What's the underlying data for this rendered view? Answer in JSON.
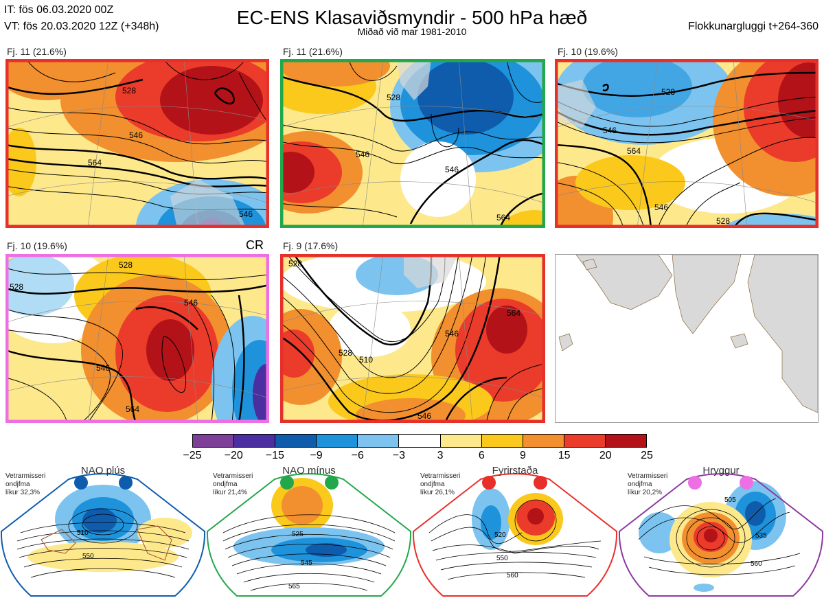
{
  "header": {
    "initial_time": "IT: fös 06.03.2020 00Z",
    "valid_time": "VT: fös 20.03.2020 12Z  (+348h)",
    "title": "EC-ENS Klasaviðsmyndir - 500 hPa hæð",
    "subtitle": "Miðað við mar 1981-2010",
    "window": "Flokkunargluggi t+264-360"
  },
  "clusters": [
    {
      "label": "Fj. 11 (21.6%)",
      "frame_color": "#e8302a"
    },
    {
      "label": "Fj. 11 (21.6%)",
      "frame_color": "#22a84a"
    },
    {
      "label": "Fj. 10 (19.6%)",
      "frame_color": "#e8302a"
    },
    {
      "label": "Fj. 10 (19.6%)",
      "frame_color": "#ee6fe4",
      "badge": "CR"
    },
    {
      "label": "Fj. 9 (17.6%)",
      "frame_color": "#e8302a"
    }
  ],
  "colorbar": {
    "ticks": [
      "−25",
      "−20",
      "−15",
      "−9",
      "−6",
      "−3",
      "3",
      "6",
      "9",
      "15",
      "20",
      "25"
    ],
    "colors": [
      "#7d3f98",
      "#4b2ea0",
      "#0f5cad",
      "#1e93dc",
      "#7cc4ef",
      "#ffffff",
      "#fde98c",
      "#fac91c",
      "#f28f2e",
      "#ea3b2b",
      "#b31218"
    ]
  },
  "regimes": [
    {
      "name": "NAO plús",
      "text": [
        "Vetrarmisseri",
        "ondjfma",
        "líkur 32,3%"
      ],
      "dot_color": "#0f5cad",
      "frame_color": "#0f5cad",
      "contours": [
        "510",
        "550"
      ]
    },
    {
      "name": "NAO mínus",
      "text": [
        "Vetrarmisseri",
        "ondjfma",
        "líkur 21,4%"
      ],
      "dot_color": "#22a84a",
      "frame_color": "#22a84a",
      "contours": [
        "525",
        "545",
        "565"
      ]
    },
    {
      "name": "Fyrirstaða",
      "text": [
        "Vetrarmisseri",
        "ondjfma",
        "líkur 26,1%"
      ],
      "dot_color": "#e8302a",
      "frame_color": "#e8302a",
      "contours": [
        "520",
        "550",
        "560"
      ]
    },
    {
      "name": "Hryggur",
      "text": [
        "Vetrarmisseri",
        "ondjfma",
        "líkur 20,2%"
      ],
      "dot_color": "#ee6fe4",
      "frame_color": "#8b3aa0",
      "contours": [
        "505",
        "535",
        "560"
      ]
    }
  ],
  "map_contour_labels": {
    "p1": [
      "528",
      "546",
      "564",
      "546"
    ],
    "p2": [
      "528",
      "546",
      "546",
      "564"
    ],
    "p3": [
      "528",
      "546",
      "564",
      "546",
      "528"
    ],
    "p4": [
      "528",
      "546",
      "546",
      "564",
      "528"
    ],
    "p5": [
      "528",
      "510",
      "528",
      "546",
      "564",
      "546"
    ]
  }
}
